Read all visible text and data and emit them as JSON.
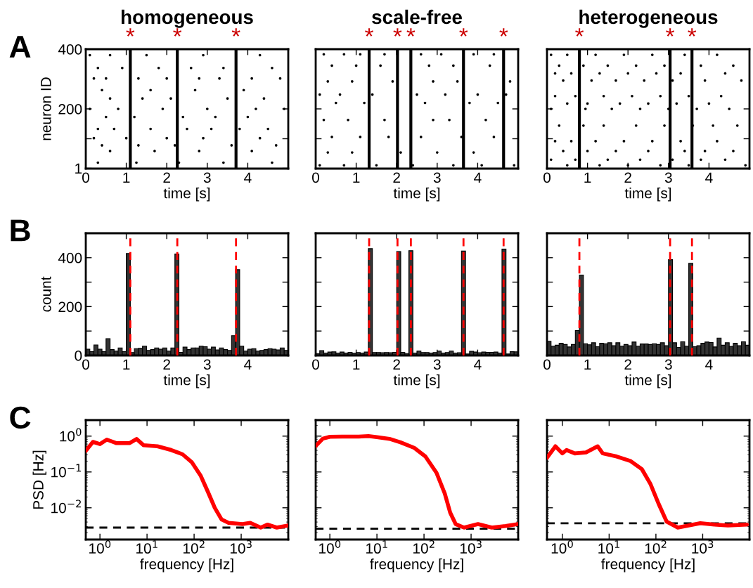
{
  "chart_data": [
    {
      "type": "scatter",
      "title": "homogeneous",
      "xlabel": "time [s]",
      "ylabel": "neuron ID",
      "annotations": [
        "A"
      ],
      "marker": "circle",
      "color": "#000000",
      "x": [
        0.1,
        0.6,
        1.5,
        2.9,
        4.3,
        0.3,
        0.9,
        1.8,
        2.6,
        3.4,
        4.6,
        0.2,
        0.5,
        1.3,
        2.0,
        2.8,
        3.3,
        4.1,
        4.8,
        0.4,
        1.6,
        2.7,
        3.9,
        0.6,
        1.4,
        2.1,
        3.5,
        4.4,
        0.1,
        0.8,
        1.9,
        3.0,
        4.2,
        4.9,
        0.5,
        1.2,
        2.4,
        3.2,
        4.0,
        0.3,
        0.7,
        1.6,
        2.5,
        3.1,
        3.8,
        4.5,
        0.2,
        1.0,
        2.0,
        2.9,
        4.3,
        0.4,
        1.3,
        2.2,
        3.6,
        4.7,
        0.6,
        1.7,
        2.8,
        4.1,
        0.3,
        1.25,
        2.3,
        3.4,
        4.6
      ],
      "values": [
        380,
        380,
        380,
        380,
        380,
        337,
        337,
        337,
        337,
        337,
        337,
        302,
        302,
        302,
        302,
        302,
        302,
        302,
        302,
        263,
        263,
        263,
        263,
        235,
        235,
        235,
        235,
        235,
        200,
        200,
        200,
        200,
        200,
        200,
        173,
        173,
        173,
        173,
        173,
        133,
        133,
        133,
        133,
        133,
        133,
        133,
        102,
        102,
        102,
        102,
        102,
        78,
        78,
        78,
        78,
        78,
        59,
        59,
        59,
        59,
        20,
        20,
        20,
        20,
        20
      ],
      "xlim": [
        0,
        5
      ],
      "xticks": [
        0,
        1,
        2,
        3,
        4
      ],
      "ylim": [
        0,
        400
      ],
      "yticks": [
        1,
        {
          "value": 100,
          "label": null
        },
        200,
        400
      ],
      "ref_lines": [
        {
          "axis": "x",
          "value": 1.1,
          "label": "*",
          "color": "#000000"
        },
        {
          "axis": "x",
          "value": 2.26,
          "label": "*",
          "color": "#000000"
        },
        {
          "axis": "x",
          "value": 3.71,
          "label": "*",
          "color": "#000000"
        }
      ]
    },
    {
      "type": "scatter",
      "title": "scale-free",
      "xlabel": "time [s]",
      "tick_labels": "x",
      "marker": "circle",
      "color": "#000000",
      "x": [
        0.2,
        0.7,
        1.1,
        1.7,
        2.6,
        3.1,
        3.9,
        4.4,
        0.4,
        1.0,
        1.6,
        2.8,
        3.4,
        4.3,
        0.3,
        0.9,
        1.9,
        2.9,
        3.5,
        4.8,
        0.1,
        0.6,
        1.4,
        2.5,
        3.2,
        4.0,
        4.7,
        0.5,
        1.2,
        2.7,
        3.8,
        4.5,
        0.2,
        0.8,
        1.7,
        2.9,
        3.3,
        4.2,
        0.4,
        1.1,
        1.8,
        2.6,
        3.6,
        4.4,
        0.3,
        0.9,
        2.1,
        3.0,
        3.9,
        0.1,
        0.7,
        1.5,
        2.4,
        3.4,
        4.1,
        4.9
      ],
      "values": [
        383,
        383,
        383,
        383,
        383,
        383,
        383,
        383,
        345,
        345,
        345,
        345,
        345,
        345,
        292,
        292,
        292,
        292,
        292,
        292,
        248,
        248,
        248,
        248,
        248,
        248,
        248,
        220,
        220,
        220,
        220,
        220,
        163,
        163,
        163,
        163,
        163,
        163,
        106,
        106,
        106,
        106,
        106,
        106,
        54,
        54,
        54,
        54,
        54,
        11,
        11,
        11,
        11,
        11,
        11,
        11
      ],
      "xlim": [
        0,
        5
      ],
      "xticks": [
        0,
        1,
        2,
        3,
        4
      ],
      "ylim": [
        0,
        400
      ],
      "yticks": [
        1,
        {
          "value": 100,
          "label": null
        },
        200,
        400
      ],
      "ref_lines": [
        {
          "axis": "x",
          "value": 1.32,
          "label": "*",
          "color": "#000000"
        },
        {
          "axis": "x",
          "value": 2.02,
          "label": "*",
          "color": "#000000"
        },
        {
          "axis": "x",
          "value": 2.35,
          "label": "*",
          "color": "#000000"
        },
        {
          "axis": "x",
          "value": 3.65,
          "label": "*",
          "color": "#000000"
        },
        {
          "axis": "x",
          "value": 4.64,
          "label": "*",
          "color": "#000000"
        }
      ]
    },
    {
      "type": "scatter",
      "title": "heterogeneous",
      "xlabel": "time [s]",
      "tick_labels": "x",
      "marker": "circle",
      "color": "#000000",
      "x": [
        0.1,
        0.5,
        1.2,
        1.9,
        2.6,
        3.4,
        4.2,
        0.3,
        0.9,
        1.5,
        2.2,
        2.9,
        3.8,
        4.6,
        0.2,
        0.6,
        1.3,
        2.0,
        2.7,
        3.3,
        4.4,
        0.4,
        1.1,
        1.7,
        2.4,
        3.1,
        3.9,
        4.8,
        0.2,
        0.7,
        1.4,
        2.1,
        2.8,
        3.5,
        4.3,
        0.5,
        1.0,
        1.8,
        2.5,
        3.2,
        4.0,
        0.1,
        0.95,
        1.6,
        2.3,
        3.0,
        3.7,
        4.5,
        0.3,
        0.9,
        1.4,
        2.2,
        2.9,
        3.6,
        4.1,
        4.7,
        0.2,
        0.6,
        1.2,
        1.9,
        2.6,
        3.3,
        4.2,
        0.4,
        1.0,
        1.7,
        2.5,
        3.4,
        3.9,
        4.6,
        0.1,
        0.7,
        1.5,
        2.3,
        3.1,
        3.8,
        4.4,
        0.5,
        1.3,
        2.0,
        2.8,
        3.5,
        4.9
      ],
      "values": [
        381,
        381,
        381,
        381,
        381,
        381,
        381,
        345,
        345,
        345,
        345,
        345,
        345,
        345,
        319,
        319,
        319,
        319,
        319,
        319,
        319,
        295,
        295,
        295,
        295,
        295,
        295,
        295,
        243,
        243,
        243,
        243,
        243,
        243,
        243,
        218,
        218,
        218,
        218,
        218,
        218,
        200,
        200,
        200,
        200,
        200,
        200,
        200,
        144,
        144,
        144,
        144,
        144,
        144,
        144,
        144,
        92,
        92,
        92,
        92,
        92,
        92,
        92,
        59,
        59,
        59,
        59,
        59,
        59,
        59,
        30,
        30,
        30,
        30,
        30,
        30,
        30,
        11,
        11,
        11,
        11,
        11,
        11
      ],
      "xlim": [
        0,
        5
      ],
      "xticks": [
        0,
        1,
        2,
        3,
        4
      ],
      "ylim": [
        0,
        400
      ],
      "yticks": [
        1,
        {
          "value": 100,
          "label": null
        },
        200,
        400
      ],
      "ref_lines": [
        {
          "axis": "x",
          "value": 0.8,
          "label": "*",
          "color": "#000000"
        },
        {
          "axis": "x",
          "value": 3.04,
          "label": "*",
          "color": "#000000"
        },
        {
          "axis": "x",
          "value": 3.58,
          "label": "*",
          "color": "#000000"
        }
      ]
    },
    {
      "type": "histogram",
      "xlabel": "time [s]",
      "ylabel": "count",
      "annotations": [
        "B"
      ],
      "color": "#333333",
      "bins": [
        0,
        0.1,
        0.2,
        0.3,
        0.4,
        0.5,
        0.6,
        0.7,
        0.8,
        0.9,
        1.0,
        1.1,
        1.2,
        1.3,
        1.4,
        1.5,
        1.6,
        1.7,
        1.8,
        1.9,
        2.0,
        2.1,
        2.2,
        2.3,
        2.4,
        2.5,
        2.6,
        2.7,
        2.8,
        2.9,
        3.0,
        3.1,
        3.2,
        3.3,
        3.4,
        3.5,
        3.6,
        3.7,
        3.8,
        3.9,
        4.0,
        4.1,
        4.2,
        4.3,
        4.4,
        4.5,
        4.6,
        4.7,
        4.8,
        4.9,
        5.0
      ],
      "values": [
        26,
        16,
        43,
        26,
        16,
        69,
        24,
        18,
        31,
        16,
        417,
        12,
        28,
        29,
        38,
        21,
        24,
        31,
        26,
        31,
        18,
        31,
        415,
        13,
        34,
        24,
        31,
        31,
        38,
        36,
        26,
        34,
        23,
        31,
        24,
        21,
        81,
        351,
        38,
        18,
        26,
        28,
        18,
        21,
        24,
        28,
        26,
        23,
        31,
        21
      ],
      "xlim": [
        0,
        5
      ],
      "xticks": [
        0,
        1,
        2,
        3,
        4
      ],
      "ylim": [
        0,
        500
      ],
      "yticks": [
        0,
        {
          "value": 100,
          "label": null
        },
        200,
        {
          "value": 300,
          "label": null
        },
        400
      ],
      "ref_lines": [
        {
          "axis": "x",
          "value": 1.1,
          "color": "#ff0000",
          "line_style": "dashed"
        },
        {
          "axis": "x",
          "value": 2.26,
          "color": "#ff0000",
          "line_style": "dashed"
        },
        {
          "axis": "x",
          "value": 3.71,
          "color": "#ff0000",
          "line_style": "dashed"
        }
      ]
    },
    {
      "type": "histogram",
      "xlabel": "time [s]",
      "tick_labels": "x",
      "color": "#333333",
      "bins": [
        0,
        0.1,
        0.2,
        0.3,
        0.4,
        0.5,
        0.6,
        0.7,
        0.8,
        0.9,
        1.0,
        1.1,
        1.2,
        1.3,
        1.4,
        1.5,
        1.6,
        1.7,
        1.8,
        1.9,
        2.0,
        2.1,
        2.2,
        2.3,
        2.4,
        2.5,
        2.6,
        2.7,
        2.8,
        2.9,
        3.0,
        3.1,
        3.2,
        3.3,
        3.4,
        3.5,
        3.6,
        3.7,
        3.8,
        3.9,
        4.0,
        4.1,
        4.2,
        4.3,
        4.4,
        4.5,
        4.6,
        4.7,
        4.8,
        4.9,
        5.0
      ],
      "values": [
        8,
        20,
        10,
        14,
        15,
        10,
        14,
        10,
        13,
        9,
        12,
        10,
        14,
        437,
        12,
        12,
        11,
        12,
        11,
        13,
        425,
        13,
        8,
        429,
        10,
        18,
        12,
        12,
        10,
        12,
        18,
        10,
        12,
        18,
        10,
        11,
        427,
        6,
        17,
        14,
        11,
        14,
        13,
        13,
        14,
        10,
        435,
        6,
        16,
        15
      ],
      "xlim": [
        0,
        5
      ],
      "xticks": [
        0,
        1,
        2,
        3,
        4
      ],
      "ylim": [
        0,
        500
      ],
      "yticks": [
        0,
        {
          "value": 100,
          "label": null
        },
        200,
        {
          "value": 300,
          "label": null
        },
        400
      ],
      "ref_lines": [
        {
          "axis": "x",
          "value": 1.32,
          "color": "#ff0000",
          "line_style": "dashed"
        },
        {
          "axis": "x",
          "value": 2.02,
          "color": "#ff0000",
          "line_style": "dashed"
        },
        {
          "axis": "x",
          "value": 2.35,
          "color": "#ff0000",
          "line_style": "dashed"
        },
        {
          "axis": "x",
          "value": 3.65,
          "color": "#ff0000",
          "line_style": "dashed"
        },
        {
          "axis": "x",
          "value": 4.64,
          "color": "#ff0000",
          "line_style": "dashed"
        }
      ]
    },
    {
      "type": "histogram",
      "xlabel": "time [s]",
      "tick_labels": "x",
      "color": "#333333",
      "bins": [
        0,
        0.1,
        0.2,
        0.3,
        0.4,
        0.5,
        0.6,
        0.7,
        0.8,
        0.9,
        1.0,
        1.1,
        1.2,
        1.3,
        1.4,
        1.5,
        1.6,
        1.7,
        1.8,
        1.9,
        2.0,
        2.1,
        2.2,
        2.3,
        2.4,
        2.5,
        2.6,
        2.7,
        2.8,
        2.9,
        3.0,
        3.1,
        3.2,
        3.3,
        3.4,
        3.5,
        3.6,
        3.7,
        3.8,
        3.9,
        4.0,
        4.1,
        4.2,
        4.3,
        4.4,
        4.5,
        4.6,
        4.7,
        4.8,
        4.9,
        5.0
      ],
      "values": [
        58,
        38,
        42,
        50,
        45,
        35,
        45,
        102,
        329,
        48,
        44,
        52,
        36,
        50,
        48,
        52,
        40,
        52,
        38,
        45,
        40,
        55,
        38,
        47,
        47,
        45,
        48,
        45,
        52,
        40,
        392,
        52,
        33,
        56,
        38,
        377,
        36,
        40,
        50,
        55,
        53,
        35,
        71,
        42,
        52,
        37,
        50,
        40,
        56,
        42
      ],
      "xlim": [
        0,
        5
      ],
      "xticks": [
        0,
        1,
        2,
        3,
        4
      ],
      "ylim": [
        0,
        500
      ],
      "yticks": [
        0,
        {
          "value": 100,
          "label": null
        },
        200,
        {
          "value": 300,
          "label": null
        },
        400
      ],
      "ref_lines": [
        {
          "axis": "x",
          "value": 0.8,
          "color": "#ff0000",
          "line_style": "dashed"
        },
        {
          "axis": "x",
          "value": 3.04,
          "color": "#ff0000",
          "line_style": "dashed"
        },
        {
          "axis": "x",
          "value": 3.58,
          "color": "#ff0000",
          "line_style": "dashed"
        }
      ]
    },
    {
      "type": "line",
      "xlabel": "frequency [Hz]",
      "ylabel": "PSD [Hz]",
      "annotations": [
        "C"
      ],
      "log": "xy",
      "series": [
        {
          "color": "#ff0000",
          "x": [
            0.5,
            0.71,
            1,
            1.4,
            2.2,
            4.3,
            6,
            8.4,
            16.6,
            32.5,
            57,
            90,
            139,
            196,
            275,
            385,
            540,
            1060,
            1560,
            2600,
            3600,
            5700,
            10000
          ],
          "values": [
            0.39,
            0.69,
            0.6,
            0.8,
            0.64,
            0.64,
            0.83,
            0.56,
            0.52,
            0.41,
            0.31,
            0.185,
            0.077,
            0.028,
            0.01,
            0.0047,
            0.0038,
            0.0035,
            0.0038,
            0.0028,
            0.0034,
            0.0028,
            0.0032
          ]
        }
      ],
      "xlim": [
        0.5,
        10000
      ],
      "xticks": [
        {
          "value": 1,
          "label": "10$^{0}$"
        },
        {
          "value": 10,
          "label": "10$^{1}$"
        },
        {
          "value": 100,
          "label": "10$^{2}$"
        },
        {
          "value": 1000,
          "label": "10$^{3}$"
        }
      ],
      "ylim": [
        0.0013,
        2.8
      ],
      "yticks": [
        {
          "value": 0.01,
          "label": "10$^{−2}$"
        },
        {
          "value": 0.1,
          "label": "10$^{−1}$"
        },
        {
          "value": 1,
          "label": "10$^{0}$"
        }
      ],
      "ref_lines": [
        {
          "axis": "y",
          "value": 0.0028,
          "color": "#000000",
          "line_style": "dashed"
        }
      ]
    },
    {
      "type": "line",
      "xlabel": "frequency [Hz]",
      "tick_labels": "x",
      "log": "xy",
      "series": [
        {
          "color": "#ff0000",
          "x": [
            0.5,
            0.71,
            1,
            1.84,
            4.1,
            6.6,
            10,
            18.4,
            31.6,
            62,
            107,
            184,
            276,
            360,
            470,
            710,
            1400,
            2760,
            5400,
            10000
          ],
          "values": [
            0.53,
            0.85,
            0.96,
            0.97,
            0.97,
            1.0,
            0.94,
            0.84,
            0.67,
            0.47,
            0.27,
            0.095,
            0.025,
            0.0073,
            0.0035,
            0.0028,
            0.0035,
            0.0028,
            0.0031,
            0.0035
          ]
        }
      ],
      "xlim": [
        0.5,
        10000
      ],
      "xticks": [
        {
          "value": 1,
          "label": "10$^{0}$"
        },
        {
          "value": 10,
          "label": "10$^{1}$"
        },
        {
          "value": 100,
          "label": "10$^{2}$"
        },
        {
          "value": 1000,
          "label": "10$^{3}$"
        }
      ],
      "ylim": [
        0.0013,
        2.8
      ],
      "yticks": [
        {
          "value": 0.01,
          "label": null
        },
        {
          "value": 0.1,
          "label": null
        },
        {
          "value": 1,
          "label": null
        }
      ],
      "ref_lines": [
        {
          "axis": "y",
          "value": 0.0026,
          "color": "#000000",
          "line_style": "dashed"
        }
      ]
    },
    {
      "type": "line",
      "xlabel": "frequency [Hz]",
      "tick_labels": "x",
      "log": "xy",
      "series": [
        {
          "color": "#ff0000",
          "x": [
            0.47,
            0.71,
            1,
            1.23,
            1.85,
            3.2,
            5.7,
            7.3,
            14.5,
            29,
            50,
            76,
            114,
            170,
            294,
            890,
            1780,
            3460,
            8800
          ],
          "values": [
            0.25,
            0.52,
            0.33,
            0.41,
            0.33,
            0.35,
            0.52,
            0.33,
            0.27,
            0.2,
            0.12,
            0.047,
            0.013,
            0.0041,
            0.0028,
            0.0037,
            0.0034,
            0.0032,
            0.0034
          ]
        }
      ],
      "xlim": [
        0.47,
        10000
      ],
      "xticks": [
        {
          "value": 1,
          "label": "10$^{0}$"
        },
        {
          "value": 10,
          "label": "10$^{1}$"
        },
        {
          "value": 100,
          "label": "10$^{2}$"
        },
        {
          "value": 1000,
          "label": "10$^{3}$"
        }
      ],
      "ylim": [
        0.0013,
        2.8
      ],
      "yticks": [
        {
          "value": 0.01,
          "label": null
        },
        {
          "value": 0.1,
          "label": null
        },
        {
          "value": 1,
          "label": null
        }
      ],
      "ref_lines": [
        {
          "axis": "y",
          "value": 0.0037,
          "color": "#000000",
          "line_style": "dashed"
        }
      ]
    }
  ]
}
